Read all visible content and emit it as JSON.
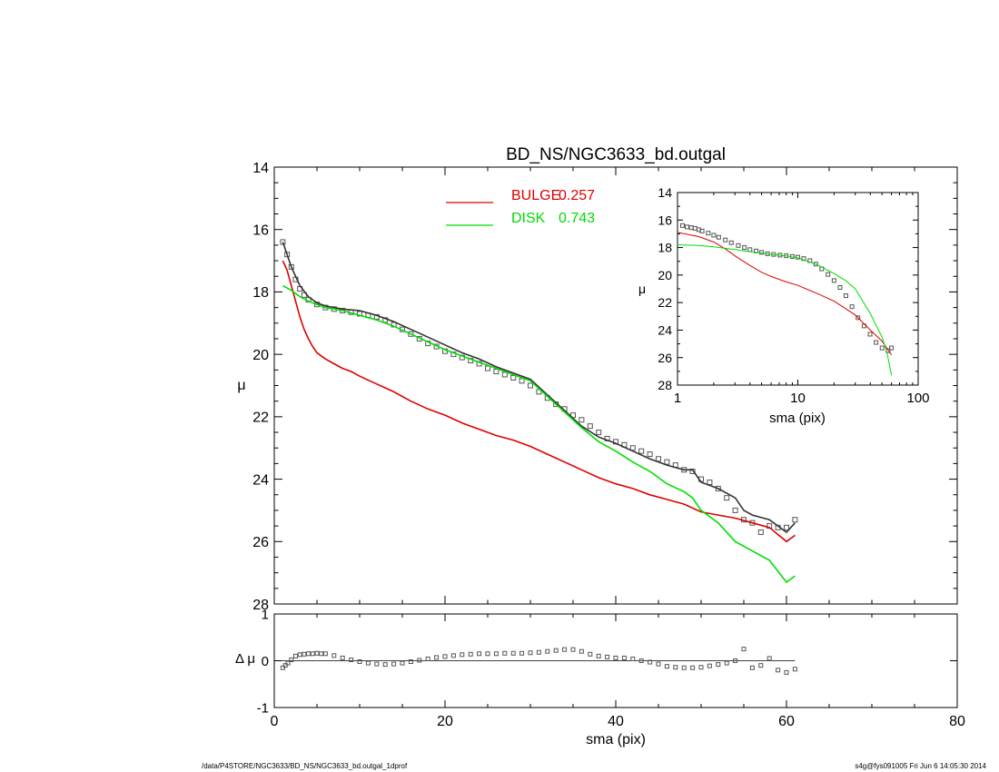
{
  "chart_data": [
    {
      "type": "line",
      "title": "BD_NS/NGC3633_bd.outgal",
      "xlabel": "",
      "ylabel": "μ",
      "xlim": [
        0,
        80
      ],
      "ylim": [
        28,
        14
      ],
      "y_inverted": true,
      "yticks": [
        14,
        16,
        18,
        20,
        22,
        24,
        26,
        28
      ],
      "xticks": [
        0,
        20,
        40,
        60,
        80
      ],
      "legend_position": "top-center",
      "legend": [
        {
          "name": "BULGE",
          "value": "0.257",
          "color": "#dd0000"
        },
        {
          "name": "DISK",
          "value": "0.743",
          "color": "#00dd00"
        }
      ],
      "series": [
        {
          "name": "data",
          "style": "square-markers",
          "color": "#555555",
          "x": [
            1.0,
            1.5,
            2.0,
            2.5,
            3.0,
            3.5,
            4.0,
            5.0,
            6.0,
            7.0,
            8.0,
            9.0,
            10.0,
            11.0,
            12.0,
            13.0,
            14.0,
            15.0,
            16.0,
            17.0,
            18.0,
            19.0,
            20.0,
            21.0,
            22.0,
            23.0,
            24.0,
            25.0,
            26.0,
            27.0,
            28.0,
            29.0,
            30.0,
            31.0,
            32.0,
            33.0,
            34.0,
            35.0,
            36.0,
            37.0,
            38.0,
            39.0,
            40.0,
            41.0,
            42.0,
            43.0,
            44.0,
            45.0,
            46.0,
            47.0,
            48.0,
            49.0,
            50.0,
            51.0,
            52.0,
            53.0,
            54.0,
            55.0,
            56.0,
            57.0,
            58.0,
            59.0,
            60.0,
            61.0
          ],
          "y": [
            16.4,
            16.8,
            17.2,
            17.6,
            17.9,
            18.1,
            18.25,
            18.4,
            18.5,
            18.55,
            18.6,
            18.65,
            18.7,
            18.75,
            18.8,
            18.9,
            19.05,
            19.2,
            19.35,
            19.5,
            19.65,
            19.75,
            19.9,
            20.0,
            20.1,
            20.2,
            20.3,
            20.45,
            20.55,
            20.65,
            20.75,
            20.85,
            21.0,
            21.2,
            21.4,
            21.6,
            21.75,
            21.95,
            22.1,
            22.3,
            22.5,
            22.7,
            22.8,
            22.9,
            23.0,
            23.1,
            23.2,
            23.35,
            23.45,
            23.55,
            23.7,
            23.75,
            24.0,
            24.1,
            24.3,
            24.6,
            25.0,
            25.3,
            25.4,
            25.7,
            25.5,
            25.55,
            25.55,
            25.3
          ]
        },
        {
          "name": "model",
          "style": "line",
          "color": "#333333",
          "x": [
            1.0,
            1.5,
            2.0,
            3.0,
            4.0,
            5.0,
            6.0,
            8.0,
            10.0,
            12.0,
            14.0,
            16.0,
            18.0,
            20.0,
            22.0,
            24.0,
            26.0,
            28.0,
            30.0,
            32.0,
            34.0,
            36.0,
            38.0,
            40.0,
            42.0,
            44.0,
            46.0,
            48.0,
            49.0,
            50.0,
            52.0,
            54.0,
            55.0,
            56.0,
            58.0,
            60.0,
            61.0
          ],
          "y": [
            16.4,
            16.8,
            17.2,
            17.8,
            18.15,
            18.35,
            18.45,
            18.55,
            18.6,
            18.75,
            18.95,
            19.2,
            19.45,
            19.7,
            19.95,
            20.15,
            20.4,
            20.6,
            20.8,
            21.3,
            21.8,
            22.3,
            22.65,
            22.85,
            23.1,
            23.35,
            23.55,
            23.7,
            23.7,
            24.1,
            24.3,
            24.6,
            25.0,
            25.15,
            25.3,
            25.7,
            25.4
          ]
        },
        {
          "name": "BULGE",
          "style": "line",
          "color": "#dd0000",
          "x": [
            1.0,
            1.5,
            2.0,
            2.5,
            3.0,
            3.5,
            4.0,
            4.5,
            5.0,
            6.0,
            7.0,
            8.0,
            9.0,
            10.0,
            12.0,
            14.0,
            16.0,
            18.0,
            20.0,
            22.0,
            24.0,
            26.0,
            28.0,
            30.0,
            32.0,
            34.0,
            36.0,
            38.0,
            40.0,
            42.0,
            44.0,
            46.0,
            48.0,
            50.0,
            52.0,
            54.0,
            56.0,
            58.0,
            60.0,
            61.0
          ],
          "y": [
            17.0,
            17.3,
            17.8,
            18.3,
            18.8,
            19.2,
            19.5,
            19.75,
            19.95,
            20.15,
            20.3,
            20.45,
            20.55,
            20.7,
            20.95,
            21.2,
            21.5,
            21.75,
            21.95,
            22.2,
            22.4,
            22.6,
            22.75,
            22.95,
            23.2,
            23.45,
            23.7,
            23.95,
            24.15,
            24.3,
            24.5,
            24.65,
            24.8,
            25.05,
            25.15,
            25.25,
            25.4,
            25.55,
            26.0,
            25.8
          ]
        },
        {
          "name": "DISK",
          "style": "line",
          "color": "#00dd00",
          "x": [
            1.0,
            2.0,
            3.0,
            4.0,
            5.0,
            6.0,
            8.0,
            10.0,
            12.0,
            14.0,
            16.0,
            18.0,
            20.0,
            22.0,
            24.0,
            26.0,
            28.0,
            30.0,
            32.0,
            34.0,
            36.0,
            38.0,
            40.0,
            42.0,
            44.0,
            46.0,
            48.0,
            49.0,
            50.0,
            52.0,
            54.0,
            56.0,
            58.0,
            60.0,
            61.0
          ],
          "y": [
            17.8,
            17.95,
            18.15,
            18.3,
            18.4,
            18.5,
            18.6,
            18.75,
            18.9,
            19.1,
            19.35,
            19.6,
            19.85,
            20.05,
            20.25,
            20.45,
            20.65,
            20.85,
            21.35,
            21.85,
            22.35,
            22.8,
            23.1,
            23.45,
            23.75,
            24.15,
            24.4,
            24.6,
            25.0,
            25.4,
            26.0,
            26.3,
            26.6,
            27.3,
            27.1
          ]
        }
      ]
    },
    {
      "type": "line",
      "title": "",
      "xlabel": "sma (pix)",
      "ylabel": "μ",
      "x_scale": "log",
      "xlim": [
        1,
        100
      ],
      "ylim": [
        28,
        14
      ],
      "y_inverted": true,
      "yticks": [
        14,
        16,
        18,
        20,
        22,
        24,
        26,
        28
      ],
      "xticks": [
        1,
        10,
        100
      ],
      "position": "inset-top-right",
      "series": [
        {
          "name": "data",
          "style": "square-markers",
          "color": "#555555",
          "x": [
            1.1,
            1.2,
            1.3,
            1.4,
            1.5,
            1.6,
            1.8,
            2.0,
            2.2,
            2.5,
            2.8,
            3.2,
            3.6,
            4.0,
            4.5,
            5.0,
            5.6,
            6.3,
            7.1,
            8.0,
            9.0,
            10.0,
            11.2,
            12.6,
            14.1,
            15.8,
            17.8,
            20.0,
            22.4,
            25.1,
            28.2,
            31.6,
            35.5,
            39.8,
            44.7,
            50.1,
            56.2,
            60.0
          ],
          "y": [
            16.4,
            16.5,
            16.55,
            16.6,
            16.7,
            16.8,
            16.95,
            17.1,
            17.25,
            17.45,
            17.65,
            17.85,
            18.0,
            18.15,
            18.25,
            18.35,
            18.45,
            18.5,
            18.55,
            18.6,
            18.65,
            18.7,
            18.8,
            18.95,
            19.2,
            19.55,
            19.95,
            20.4,
            20.9,
            21.5,
            22.3,
            23.1,
            23.7,
            24.3,
            24.9,
            25.3,
            25.5,
            25.3
          ]
        },
        {
          "name": "BULGE",
          "style": "line",
          "color": "#dd0000",
          "x": [
            1.0,
            1.5,
            2.0,
            2.5,
            3.0,
            4.0,
            5.0,
            6.0,
            8.0,
            10.0,
            15.0,
            20.0,
            30.0,
            40.0,
            50.0,
            60.0
          ],
          "y": [
            16.9,
            17.2,
            17.6,
            18.1,
            18.6,
            19.3,
            19.8,
            20.1,
            20.5,
            20.75,
            21.4,
            21.9,
            22.9,
            24.0,
            24.8,
            25.8
          ]
        },
        {
          "name": "DISK",
          "style": "line",
          "color": "#00dd00",
          "x": [
            1.0,
            1.5,
            2.0,
            3.0,
            4.0,
            5.0,
            6.0,
            8.0,
            10.0,
            15.0,
            20.0,
            25.0,
            30.0,
            40.0,
            50.0,
            55.0,
            60.0
          ],
          "y": [
            17.8,
            17.85,
            17.95,
            18.15,
            18.3,
            18.4,
            18.5,
            18.6,
            18.75,
            19.3,
            19.9,
            20.4,
            21.0,
            22.8,
            24.5,
            25.6,
            27.3
          ]
        }
      ]
    },
    {
      "type": "scatter",
      "title": "",
      "xlabel": "sma (pix)",
      "ylabel": "Δ μ",
      "xlim": [
        0,
        80
      ],
      "ylim": [
        -1,
        1
      ],
      "yticks": [
        -1,
        0,
        1
      ],
      "xticks": [
        0,
        20,
        40,
        60,
        80
      ],
      "series": [
        {
          "name": "residual",
          "style": "square-markers",
          "color": "#555555",
          "x": [
            1.0,
            1.3,
            1.6,
            2.0,
            2.5,
            3.0,
            3.5,
            4.0,
            4.5,
            5.0,
            5.5,
            6.0,
            7.0,
            8.0,
            9.0,
            10.0,
            11.0,
            12.0,
            13.0,
            14.0,
            15.0,
            16.0,
            17.0,
            18.0,
            19.0,
            20.0,
            21.0,
            22.0,
            23.0,
            24.0,
            25.0,
            26.0,
            27.0,
            28.0,
            29.0,
            30.0,
            31.0,
            32.0,
            33.0,
            34.0,
            35.0,
            36.0,
            37.0,
            38.0,
            39.0,
            40.0,
            41.0,
            42.0,
            43.0,
            44.0,
            45.0,
            46.0,
            47.0,
            48.0,
            49.0,
            50.0,
            51.0,
            52.0,
            53.0,
            54.0,
            55.0,
            56.0,
            57.0,
            58.0,
            59.0,
            60.0,
            61.0
          ],
          "y": [
            -0.15,
            -0.1,
            -0.05,
            0.02,
            0.1,
            0.13,
            0.14,
            0.15,
            0.15,
            0.16,
            0.15,
            0.15,
            0.11,
            0.06,
            0.02,
            -0.02,
            -0.05,
            -0.07,
            -0.08,
            -0.07,
            -0.05,
            -0.02,
            0.01,
            0.04,
            0.07,
            0.09,
            0.11,
            0.13,
            0.14,
            0.15,
            0.15,
            0.15,
            0.16,
            0.16,
            0.16,
            0.17,
            0.18,
            0.2,
            0.22,
            0.24,
            0.24,
            0.2,
            0.14,
            0.1,
            0.08,
            0.06,
            0.06,
            0.04,
            0.0,
            -0.03,
            -0.07,
            -0.12,
            -0.14,
            -0.15,
            -0.15,
            -0.14,
            -0.11,
            -0.08,
            -0.05,
            0.0,
            0.25,
            -0.15,
            -0.1,
            0.05,
            -0.2,
            -0.25,
            -0.18
          ]
        }
      ]
    }
  ],
  "footer": {
    "left": "/data/P4STORE/NGC3633/BD_NS/NGC3633_bd.outgal_1dprof",
    "right": "s4g@fys091005  Fri Jun  6 14:05:30 2014"
  }
}
